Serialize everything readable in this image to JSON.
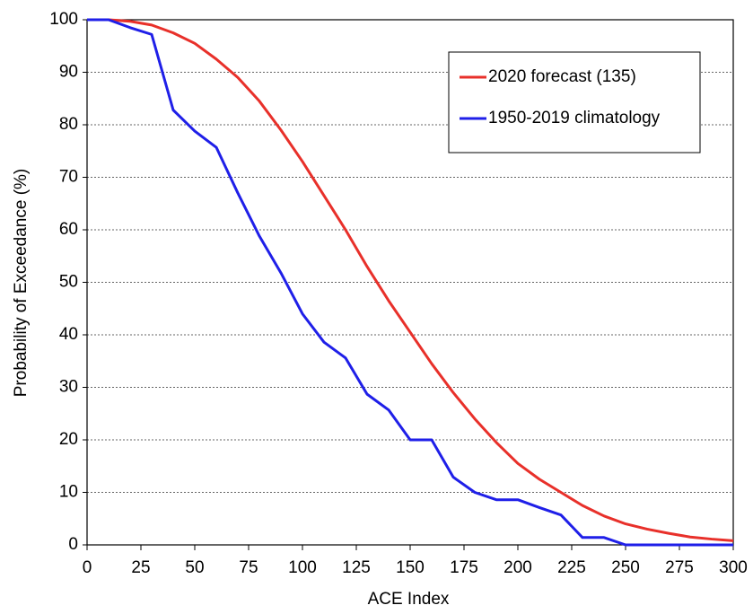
{
  "chart_data": {
    "type": "line",
    "x_label": "ACE Index",
    "y_label": "Probability of Exceedance (%)",
    "x": [
      0,
      10,
      20,
      30,
      40,
      50,
      60,
      70,
      80,
      90,
      100,
      110,
      120,
      130,
      140,
      150,
      160,
      170,
      180,
      190,
      200,
      210,
      220,
      230,
      240,
      250,
      260,
      270,
      280,
      290,
      300
    ],
    "series": [
      {
        "name": "2020 forecast (135)",
        "color": "#e8302a",
        "values": [
          100,
          100,
          99.7,
          99,
          97.5,
          95.5,
          92.5,
          89,
          84.5,
          79,
          73,
          66.5,
          60,
          53,
          46.5,
          40.5,
          34.5,
          29,
          24,
          19.5,
          15.5,
          12.5,
          10,
          7.5,
          5.5,
          4,
          3,
          2.2,
          1.5,
          1.1,
          0.8
        ]
      },
      {
        "name": "1950-2019 climatology",
        "color": "#1f1fe8",
        "values": [
          100,
          100,
          98.5,
          97.2,
          82.8,
          78.8,
          75.7,
          67,
          58.8,
          51.8,
          44,
          38.6,
          35.6,
          28.7,
          25.7,
          20,
          20,
          12.9,
          10,
          8.6,
          8.6,
          7.1,
          5.7,
          1.4,
          1.4,
          0,
          0,
          0,
          0,
          0,
          0
        ]
      }
    ],
    "xlim": [
      0,
      300
    ],
    "xticks": [
      0,
      25,
      50,
      75,
      100,
      125,
      150,
      175,
      200,
      225,
      250,
      275,
      300
    ],
    "ylim": [
      0,
      100
    ],
    "yticks": [
      0,
      10,
      20,
      30,
      40,
      50,
      60,
      70,
      80,
      90,
      100
    ],
    "grid": true,
    "legend": "upper right"
  }
}
